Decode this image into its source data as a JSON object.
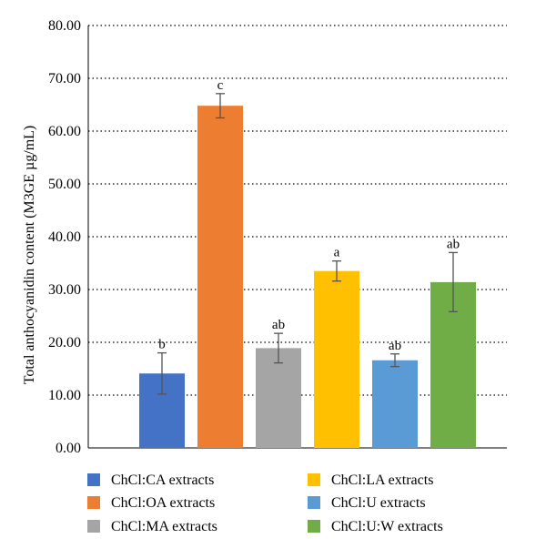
{
  "chart_data": {
    "type": "bar",
    "ylabel": "Total anthocyanidin content (M3GE µg/mL)",
    "ylim": [
      0,
      80
    ],
    "yticks": [
      "0.00",
      "10.00",
      "20.00",
      "30.00",
      "40.00",
      "50.00",
      "60.00",
      "70.00",
      "80.00"
    ],
    "grid": true,
    "legend_position": "bottom",
    "categories": [
      "ChCl:CA extracts",
      "ChCl:OA extracts",
      "ChCl:MA extracts",
      "ChCl:LA extracts",
      "ChCl:U extracts",
      "ChCl:U:W extracts"
    ],
    "values": [
      14.1,
      64.8,
      18.9,
      33.5,
      16.6,
      31.4
    ],
    "errors": [
      3.9,
      2.3,
      2.8,
      1.9,
      1.2,
      5.6
    ],
    "significance": [
      "b",
      "c",
      "ab",
      "a",
      "ab",
      "ab"
    ],
    "colors": [
      "#4472c4",
      "#ed7d31",
      "#a5a5a5",
      "#ffc000",
      "#5b9bd5",
      "#70ad47"
    ]
  }
}
